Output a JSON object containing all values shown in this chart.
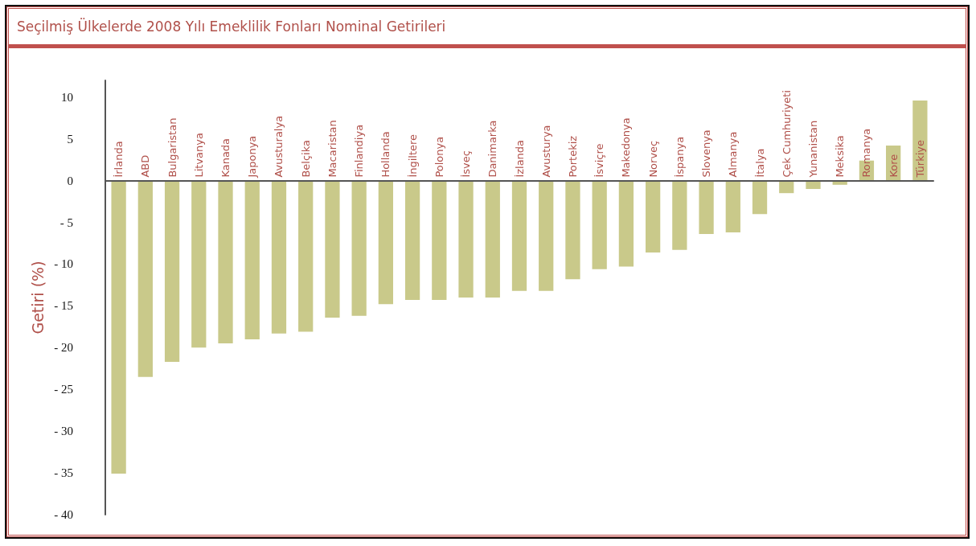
{
  "chart_data": {
    "type": "bar",
    "title": "Seçilmiş Ülkelerde 2008 Yılı Emeklilik Fonları Nominal Getirileri",
    "ylabel": "Getiri (%)",
    "categories": [
      "İrlanda",
      "ABD",
      "Bulgaristan",
      "Litvanya",
      "Kanada",
      "Japonya",
      "Avusturalya",
      "Belçika",
      "Macaristan",
      "Finlandiya",
      "Hollanda",
      "İngiltere",
      "Polonya",
      "İsveç",
      "Danimarka",
      "İzlanda",
      "Avusturya",
      "Portekiz",
      "İsviçre",
      "Makedonya",
      "Norveç",
      "İspanya",
      "Slovenya",
      "Almanya",
      "İtalya",
      "Çek Cumhuriyeti",
      "Yunanistan",
      "Meksika",
      "Romanya",
      "Kore",
      "Türkiye"
    ],
    "values": [
      -35.1,
      -23.5,
      -21.7,
      -20.0,
      -19.5,
      -19.0,
      -18.3,
      -18.1,
      -16.4,
      -16.2,
      -14.8,
      -14.3,
      -14.3,
      -14.0,
      -14.0,
      -13.2,
      -13.2,
      -11.8,
      -10.6,
      -10.3,
      -8.6,
      -8.3,
      -6.4,
      -6.2,
      -4.0,
      -1.5,
      -1.0,
      -0.5,
      2.4,
      4.2,
      9.6
    ],
    "color": "#c9c98a",
    "ylim": [
      -40,
      12
    ],
    "yticks": [
      {
        "value": -40,
        "label": "- 40"
      },
      {
        "value": -35,
        "label": "- 35"
      },
      {
        "value": -30,
        "label": "- 30"
      },
      {
        "value": -25,
        "label": "- 25"
      },
      {
        "value": -20,
        "label": "- 20"
      },
      {
        "value": -15,
        "label": "- 15"
      },
      {
        "value": -10,
        "label": "- 10"
      },
      {
        "value": -5,
        "label": "- 5"
      },
      0,
      5,
      10
    ],
    "grid": false
  }
}
